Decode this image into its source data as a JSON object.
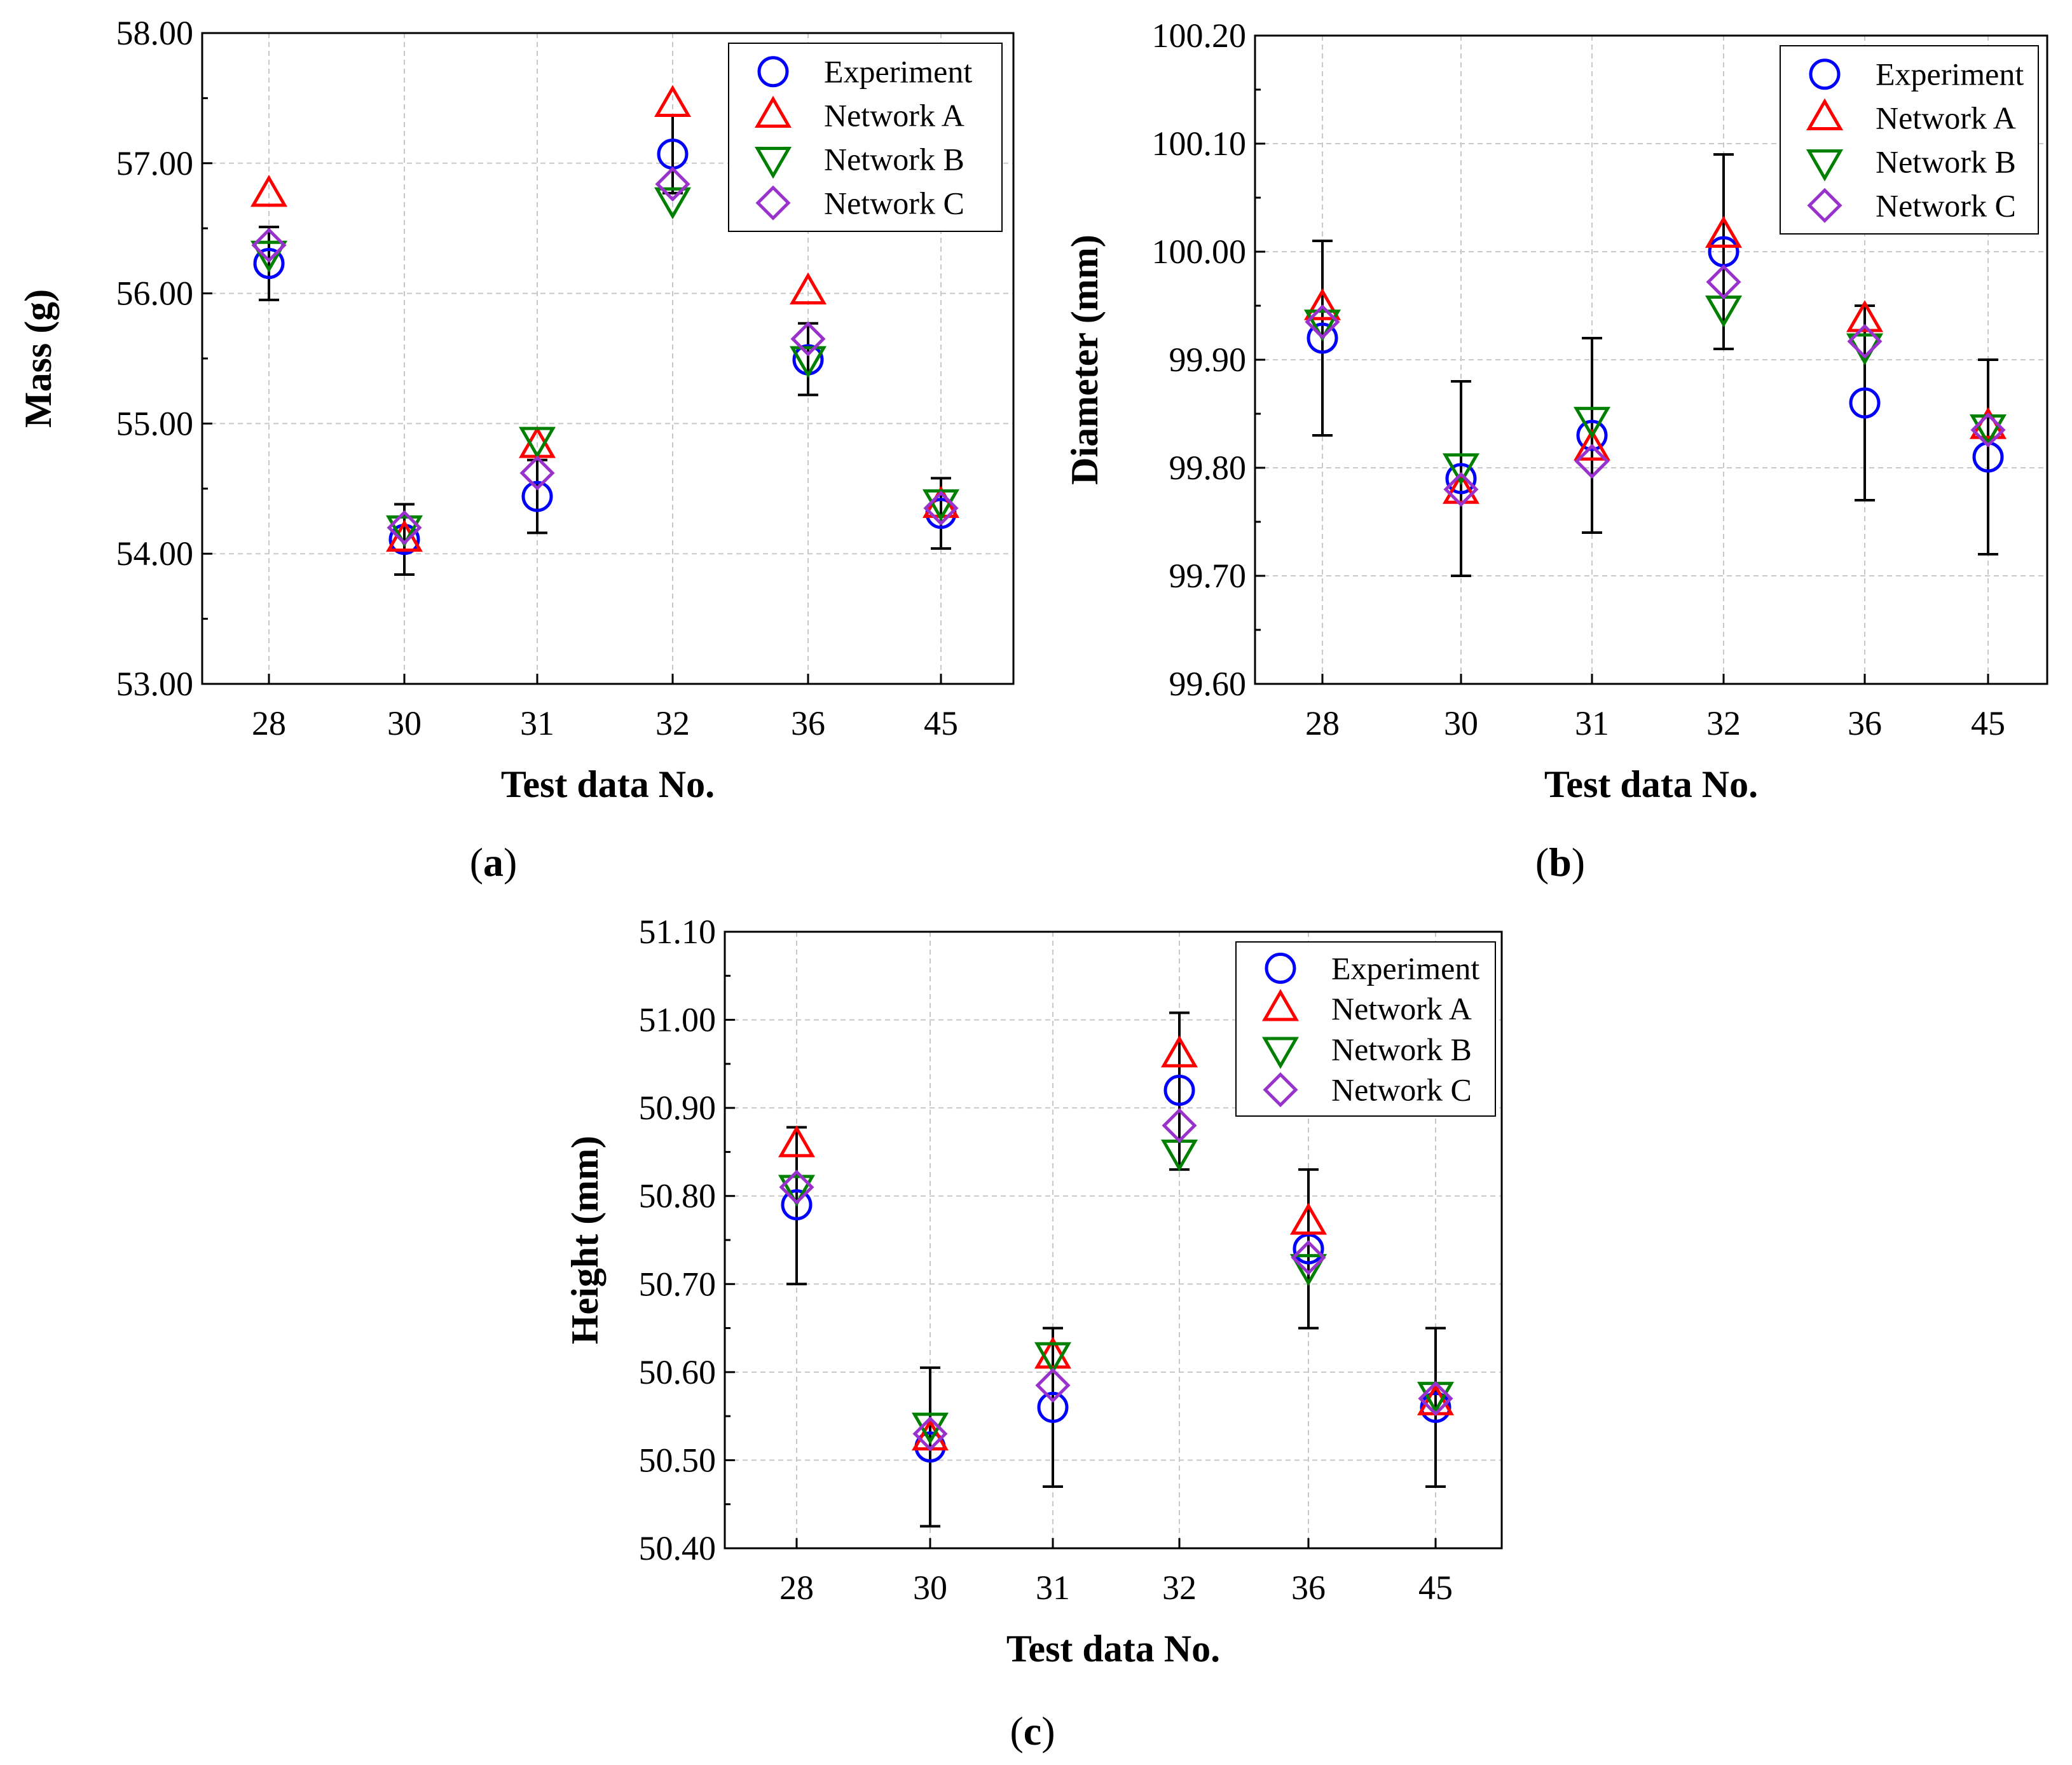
{
  "chart_data": [
    {
      "type": "scatter",
      "panel": "a",
      "caption_letter": "a",
      "xlabel": "Test data No.",
      "ylabel": "Mass (g)",
      "categories": [
        "28",
        "30",
        "31",
        "32",
        "36",
        "45"
      ],
      "ylim": [
        53.0,
        58.0
      ],
      "yticks": [
        53.0,
        54.0,
        55.0,
        56.0,
        57.0,
        58.0
      ],
      "ytick_labels": [
        "53.00",
        "54.00",
        "55.00",
        "56.00",
        "57.00",
        "58.00"
      ],
      "grid": true,
      "legend_position": "top-right",
      "error_bars": {
        "series": "Experiment",
        "lower": [
          55.95,
          53.84,
          54.16,
          56.77,
          55.22,
          54.04
        ],
        "upper": [
          56.51,
          54.38,
          54.72,
          57.37,
          55.77,
          54.58
        ]
      },
      "series": [
        {
          "name": "Experiment",
          "marker": "circle",
          "color": "#0000ff",
          "values": [
            56.23,
            54.11,
            54.44,
            57.07,
            55.49,
            54.31
          ]
        },
        {
          "name": "Network A",
          "marker": "triangle-up",
          "color": "#ff0000",
          "values": [
            56.76,
            54.11,
            54.83,
            57.45,
            56.01,
            54.37
          ]
        },
        {
          "name": "Network B",
          "marker": "triangle-down",
          "color": "#008000",
          "values": [
            56.31,
            54.2,
            54.88,
            56.72,
            55.5,
            54.4
          ]
        },
        {
          "name": "Network C",
          "marker": "diamond",
          "color": "#9932cc",
          "values": [
            56.37,
            54.2,
            54.62,
            56.84,
            55.65,
            54.35
          ]
        }
      ]
    },
    {
      "type": "scatter",
      "panel": "b",
      "caption_letter": "b",
      "xlabel": "Test data No.",
      "ylabel": "Diameter (mm)",
      "categories": [
        "28",
        "30",
        "31",
        "32",
        "36",
        "45"
      ],
      "ylim": [
        99.6,
        100.2
      ],
      "yticks": [
        99.6,
        99.7,
        99.8,
        99.9,
        100.0,
        100.1,
        100.2
      ],
      "ytick_labels": [
        "99.60",
        "99.70",
        "99.80",
        "99.90",
        "100.00",
        "100.10",
        "100.20"
      ],
      "grid": true,
      "legend_position": "top-right",
      "error_bars": {
        "series": "Experiment",
        "lower": [
          99.83,
          99.7,
          99.74,
          99.91,
          99.77,
          99.72
        ],
        "upper": [
          100.01,
          99.88,
          99.92,
          100.09,
          99.95,
          99.9
        ]
      },
      "series": [
        {
          "name": "Experiment",
          "marker": "circle",
          "color": "#0000ff",
          "values": [
            99.92,
            99.79,
            99.83,
            100.0,
            99.86,
            99.81
          ]
        },
        {
          "name": "Network A",
          "marker": "triangle-up",
          "color": "#ff0000",
          "values": [
            99.948,
            99.778,
            99.818,
            100.015,
            99.937,
            99.838
          ]
        },
        {
          "name": "Network B",
          "marker": "triangle-down",
          "color": "#008000",
          "values": [
            99.935,
            99.802,
            99.845,
            99.948,
            99.913,
            99.838
          ]
        },
        {
          "name": "Network C",
          "marker": "diamond",
          "color": "#9932cc",
          "values": [
            99.935,
            99.78,
            99.806,
            99.972,
            99.917,
            99.835
          ]
        }
      ]
    },
    {
      "type": "scatter",
      "panel": "c",
      "caption_letter": "c",
      "xlabel": "Test data No.",
      "ylabel": "Height (mm)",
      "categories": [
        "28",
        "30",
        "31",
        "32",
        "36",
        "45"
      ],
      "ylim": [
        50.4,
        51.1
      ],
      "yticks": [
        50.4,
        50.5,
        50.6,
        50.7,
        50.8,
        50.9,
        51.0,
        51.1
      ],
      "ytick_labels": [
        "50.40",
        "50.50",
        "50.60",
        "50.70",
        "50.80",
        "50.90",
        "51.00",
        "51.10"
      ],
      "grid": true,
      "legend_position": "top-right",
      "error_bars": {
        "series": "Experiment",
        "lower": [
          50.7,
          50.425,
          50.47,
          50.83,
          50.65,
          50.47
        ],
        "upper": [
          50.878,
          50.605,
          50.65,
          51.008,
          50.83,
          50.65
        ]
      },
      "series": [
        {
          "name": "Experiment",
          "marker": "circle",
          "color": "#0000ff",
          "values": [
            50.79,
            50.515,
            50.56,
            50.92,
            50.74,
            50.56
          ]
        },
        {
          "name": "Network A",
          "marker": "triangle-up",
          "color": "#ff0000",
          "values": [
            50.858,
            50.525,
            50.618,
            50.96,
            50.77,
            50.565
          ]
        },
        {
          "name": "Network B",
          "marker": "triangle-down",
          "color": "#008000",
          "values": [
            50.81,
            50.54,
            50.62,
            50.85,
            50.72,
            50.575
          ]
        },
        {
          "name": "Network C",
          "marker": "diamond",
          "color": "#9932cc",
          "values": [
            50.81,
            50.53,
            50.585,
            50.88,
            50.73,
            50.57
          ]
        }
      ]
    }
  ]
}
